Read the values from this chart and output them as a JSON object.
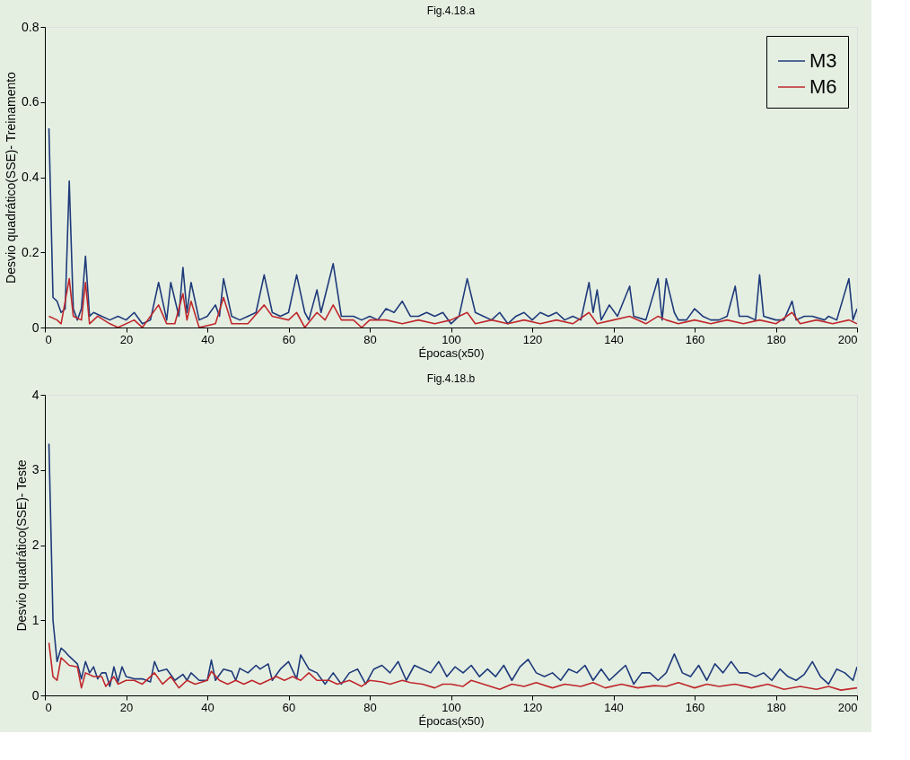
{
  "chart_data": [
    {
      "type": "line",
      "title": "Fig.4.18.a",
      "xlabel": "Épocas(x50)",
      "ylabel": "Desvio quadrático(SSE)- Treinamento",
      "xlim": [
        0,
        200
      ],
      "xticks": [
        0,
        20,
        40,
        60,
        80,
        100,
        120,
        140,
        160,
        180,
        200
      ],
      "ylim": [
        0,
        0.8
      ],
      "yticks": [
        0,
        0.2,
        0.4,
        0.6,
        0.8
      ],
      "grid": false,
      "legend": "top right",
      "line_style": "solid",
      "series": [
        {
          "name": "M3",
          "color": "#1f3a7a",
          "x": [
            1,
            2,
            3,
            4,
            5,
            6,
            7,
            8,
            9,
            10,
            11,
            12,
            14,
            16,
            18,
            20,
            22,
            24,
            26,
            28,
            30,
            31,
            33,
            34,
            35,
            36,
            38,
            40,
            42,
            43,
            44,
            46,
            48,
            50,
            52,
            54,
            56,
            58,
            60,
            62,
            64,
            65,
            67,
            68,
            71,
            73,
            76,
            78,
            80,
            82,
            84,
            86,
            88,
            90,
            92,
            94,
            96,
            98,
            100,
            102,
            104,
            106,
            108,
            110,
            112,
            114,
            116,
            118,
            120,
            122,
            124,
            126,
            128,
            130,
            132,
            134,
            135,
            136,
            137,
            139,
            141,
            144,
            145,
            148,
            151,
            152,
            153,
            155,
            156,
            158,
            160,
            162,
            164,
            166,
            168,
            170,
            171,
            173,
            175,
            176,
            177,
            180,
            182,
            184,
            185,
            187,
            189,
            192,
            193,
            195,
            198,
            199,
            200
          ],
          "values": [
            0.53,
            0.08,
            0.07,
            0.04,
            0.05,
            0.39,
            0.05,
            0.02,
            0.05,
            0.19,
            0.03,
            0.04,
            0.03,
            0.02,
            0.03,
            0.02,
            0.04,
            0.01,
            0.02,
            0.12,
            0.02,
            0.12,
            0.03,
            0.16,
            0.04,
            0.12,
            0.02,
            0.03,
            0.06,
            0.03,
            0.13,
            0.03,
            0.02,
            0.03,
            0.04,
            0.14,
            0.04,
            0.03,
            0.04,
            0.14,
            0.04,
            0.02,
            0.1,
            0.04,
            0.17,
            0.03,
            0.03,
            0.02,
            0.03,
            0.02,
            0.05,
            0.04,
            0.07,
            0.03,
            0.03,
            0.04,
            0.03,
            0.04,
            0.01,
            0.03,
            0.13,
            0.04,
            0.03,
            0.02,
            0.04,
            0.01,
            0.03,
            0.04,
            0.02,
            0.04,
            0.03,
            0.04,
            0.02,
            0.03,
            0.02,
            0.12,
            0.04,
            0.1,
            0.02,
            0.06,
            0.03,
            0.11,
            0.03,
            0.02,
            0.13,
            0.02,
            0.13,
            0.04,
            0.02,
            0.02,
            0.05,
            0.03,
            0.02,
            0.02,
            0.03,
            0.11,
            0.03,
            0.03,
            0.02,
            0.14,
            0.03,
            0.02,
            0.02,
            0.07,
            0.02,
            0.03,
            0.03,
            0.02,
            0.03,
            0.02,
            0.13,
            0.02,
            0.05
          ]
        },
        {
          "name": "M6",
          "color": "#c0282c",
          "x": [
            1,
            3,
            4,
            6,
            7,
            9,
            10,
            11,
            13,
            16,
            18,
            22,
            24,
            28,
            30,
            32,
            34,
            35,
            36,
            38,
            42,
            44,
            46,
            50,
            54,
            56,
            60,
            62,
            64,
            67,
            69,
            71,
            73,
            76,
            78,
            80,
            84,
            88,
            92,
            96,
            100,
            104,
            106,
            110,
            114,
            118,
            122,
            126,
            130,
            134,
            136,
            140,
            144,
            148,
            151,
            153,
            156,
            160,
            164,
            168,
            172,
            176,
            180,
            184,
            186,
            190,
            194,
            198,
            200
          ],
          "values": [
            0.03,
            0.02,
            0.01,
            0.13,
            0.03,
            0.02,
            0.12,
            0.01,
            0.03,
            0.01,
            0.0,
            0.02,
            0.0,
            0.06,
            0.01,
            0.01,
            0.09,
            0.02,
            0.07,
            0.0,
            0.01,
            0.08,
            0.01,
            0.01,
            0.06,
            0.03,
            0.02,
            0.04,
            0.0,
            0.04,
            0.02,
            0.06,
            0.02,
            0.02,
            0.0,
            0.02,
            0.02,
            0.01,
            0.02,
            0.01,
            0.02,
            0.04,
            0.01,
            0.02,
            0.01,
            0.02,
            0.01,
            0.02,
            0.01,
            0.04,
            0.01,
            0.02,
            0.03,
            0.01,
            0.03,
            0.02,
            0.01,
            0.02,
            0.01,
            0.02,
            0.01,
            0.02,
            0.01,
            0.04,
            0.01,
            0.02,
            0.01,
            0.02,
            0.01
          ]
        }
      ]
    },
    {
      "type": "line",
      "title": "Fig.4.18.b",
      "xlabel": "Épocas(x50)",
      "ylabel": "Desvio quadrático(SSE)- Teste",
      "xlim": [
        0,
        200
      ],
      "xticks": [
        0,
        20,
        40,
        60,
        80,
        100,
        120,
        140,
        160,
        180,
        200
      ],
      "ylim": [
        0,
        4
      ],
      "yticks": [
        0,
        1,
        2,
        3,
        4
      ],
      "grid": false,
      "legend": "top right",
      "line_style": "solid",
      "series": [
        {
          "name": "M3",
          "color": "#1f3a7a",
          "x": [
            1,
            2,
            3,
            4,
            5,
            6,
            7,
            8,
            9,
            10,
            11,
            12,
            13,
            14,
            15,
            16,
            17,
            18,
            19,
            20,
            22,
            24,
            26,
            27,
            28,
            30,
            32,
            34,
            35,
            36,
            38,
            40,
            41,
            42,
            44,
            46,
            47,
            48,
            50,
            52,
            53,
            55,
            56,
            58,
            60,
            62,
            63,
            65,
            67,
            69,
            71,
            73,
            75,
            77,
            79,
            81,
            83,
            85,
            87,
            89,
            91,
            93,
            95,
            97,
            99,
            101,
            103,
            105,
            107,
            109,
            111,
            113,
            115,
            117,
            119,
            121,
            123,
            125,
            127,
            129,
            131,
            133,
            135,
            137,
            139,
            141,
            143,
            145,
            147,
            149,
            151,
            153,
            155,
            157,
            159,
            161,
            163,
            165,
            167,
            169,
            171,
            173,
            175,
            177,
            179,
            181,
            183,
            185,
            187,
            189,
            191,
            193,
            195,
            197,
            199,
            200
          ],
          "values": [
            3.35,
            1.0,
            0.45,
            0.63,
            0.58,
            0.52,
            0.47,
            0.42,
            0.22,
            0.45,
            0.3,
            0.38,
            0.22,
            0.3,
            0.3,
            0.12,
            0.38,
            0.18,
            0.38,
            0.25,
            0.22,
            0.22,
            0.18,
            0.45,
            0.32,
            0.35,
            0.2,
            0.28,
            0.2,
            0.3,
            0.2,
            0.2,
            0.47,
            0.2,
            0.35,
            0.32,
            0.2,
            0.36,
            0.3,
            0.4,
            0.35,
            0.42,
            0.2,
            0.35,
            0.45,
            0.22,
            0.54,
            0.35,
            0.3,
            0.15,
            0.3,
            0.15,
            0.3,
            0.35,
            0.15,
            0.35,
            0.4,
            0.3,
            0.45,
            0.2,
            0.4,
            0.35,
            0.3,
            0.45,
            0.25,
            0.38,
            0.3,
            0.4,
            0.25,
            0.35,
            0.25,
            0.4,
            0.2,
            0.38,
            0.48,
            0.3,
            0.25,
            0.3,
            0.2,
            0.35,
            0.3,
            0.4,
            0.2,
            0.35,
            0.2,
            0.3,
            0.4,
            0.15,
            0.3,
            0.3,
            0.2,
            0.3,
            0.55,
            0.3,
            0.25,
            0.4,
            0.2,
            0.42,
            0.3,
            0.45,
            0.3,
            0.3,
            0.25,
            0.3,
            0.2,
            0.35,
            0.25,
            0.2,
            0.28,
            0.45,
            0.25,
            0.15,
            0.35,
            0.3,
            0.2,
            0.38
          ]
        },
        {
          "name": "M6",
          "color": "#c0282c",
          "x": [
            1,
            2,
            3,
            4,
            6,
            8,
            9,
            10,
            12,
            14,
            15,
            17,
            18,
            20,
            22,
            24,
            27,
            29,
            31,
            33,
            35,
            37,
            40,
            41,
            43,
            45,
            47,
            49,
            51,
            53,
            55,
            57,
            59,
            61,
            63,
            65,
            67,
            70,
            72,
            75,
            78,
            80,
            83,
            85,
            88,
            90,
            93,
            96,
            98,
            100,
            103,
            105,
            108,
            112,
            115,
            118,
            121,
            125,
            128,
            132,
            135,
            138,
            142,
            146,
            150,
            153,
            156,
            160,
            163,
            166,
            170,
            174,
            178,
            182,
            186,
            190,
            193,
            196,
            200
          ],
          "values": [
            0.7,
            0.25,
            0.2,
            0.5,
            0.4,
            0.38,
            0.1,
            0.3,
            0.25,
            0.25,
            0.12,
            0.25,
            0.15,
            0.2,
            0.2,
            0.15,
            0.3,
            0.15,
            0.25,
            0.1,
            0.2,
            0.15,
            0.2,
            0.32,
            0.2,
            0.15,
            0.2,
            0.15,
            0.2,
            0.15,
            0.2,
            0.25,
            0.2,
            0.25,
            0.2,
            0.3,
            0.2,
            0.2,
            0.15,
            0.2,
            0.12,
            0.2,
            0.18,
            0.15,
            0.2,
            0.17,
            0.15,
            0.1,
            0.15,
            0.15,
            0.12,
            0.2,
            0.15,
            0.08,
            0.15,
            0.12,
            0.17,
            0.1,
            0.15,
            0.12,
            0.17,
            0.1,
            0.15,
            0.1,
            0.13,
            0.12,
            0.17,
            0.1,
            0.15,
            0.12,
            0.15,
            0.1,
            0.15,
            0.08,
            0.12,
            0.08,
            0.12,
            0.07,
            0.1
          ]
        }
      ]
    }
  ]
}
